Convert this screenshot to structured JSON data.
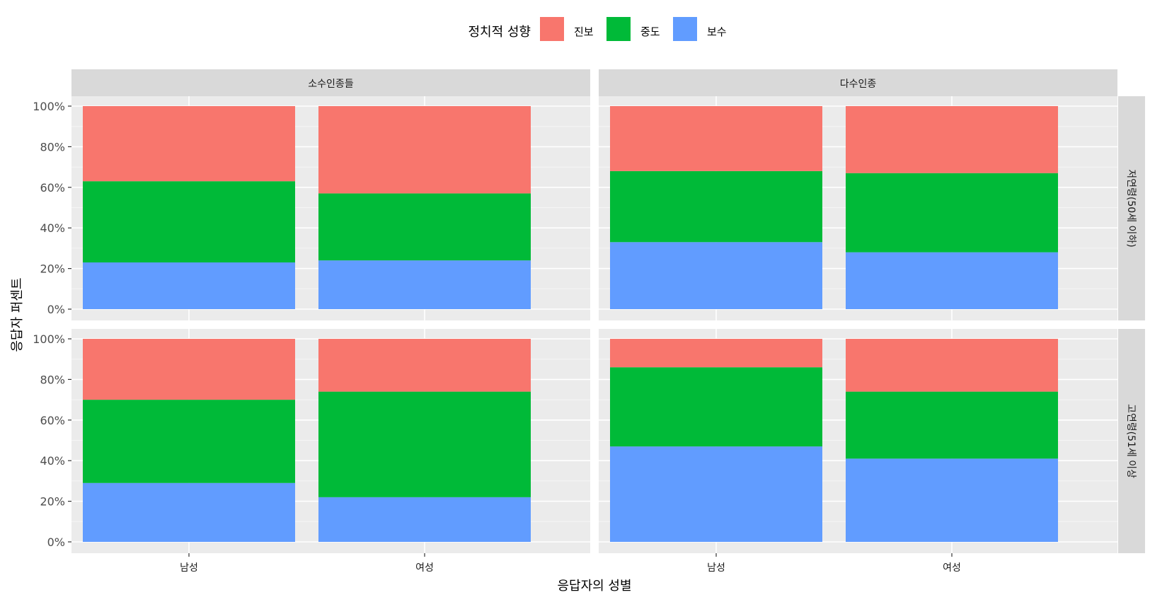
{
  "chart_data": {
    "type": "bar",
    "stacked": true,
    "facet_cols": [
      "소수인종들",
      "다수인종"
    ],
    "facet_rows": [
      "저연령(50세 이하)",
      "고연령(51세 이상"
    ],
    "categories": [
      "남성",
      "여성"
    ],
    "xlabel": "응답자의 성별",
    "ylabel": "응답자 퍼센트",
    "ylim": [
      0,
      100
    ],
    "yticks": [
      "0%",
      "20%",
      "40%",
      "60%",
      "80%",
      "100%"
    ],
    "legend": {
      "title": "정치적 성향",
      "position": "top",
      "items": [
        {
          "name": "진보",
          "color": "#F8766D"
        },
        {
          "name": "중도",
          "color": "#00BA38"
        },
        {
          "name": "보수",
          "color": "#619CFF"
        }
      ]
    },
    "panels": [
      {
        "row": 0,
        "col": 0,
        "series": [
          {
            "name": "보수",
            "values": [
              23,
              24
            ]
          },
          {
            "name": "중도",
            "values": [
              40,
              33
            ]
          },
          {
            "name": "진보",
            "values": [
              37,
              43
            ]
          }
        ]
      },
      {
        "row": 0,
        "col": 1,
        "series": [
          {
            "name": "보수",
            "values": [
              33,
              28
            ]
          },
          {
            "name": "중도",
            "values": [
              35,
              39
            ]
          },
          {
            "name": "진보",
            "values": [
              32,
              33
            ]
          }
        ]
      },
      {
        "row": 1,
        "col": 0,
        "series": [
          {
            "name": "보수",
            "values": [
              29,
              22
            ]
          },
          {
            "name": "중도",
            "values": [
              41,
              52
            ]
          },
          {
            "name": "진보",
            "values": [
              30,
              26
            ]
          }
        ]
      },
      {
        "row": 1,
        "col": 1,
        "series": [
          {
            "name": "보수",
            "values": [
              47,
              41
            ]
          },
          {
            "name": "중도",
            "values": [
              39,
              33
            ]
          },
          {
            "name": "진보",
            "values": [
              14,
              26
            ]
          }
        ]
      }
    ]
  }
}
